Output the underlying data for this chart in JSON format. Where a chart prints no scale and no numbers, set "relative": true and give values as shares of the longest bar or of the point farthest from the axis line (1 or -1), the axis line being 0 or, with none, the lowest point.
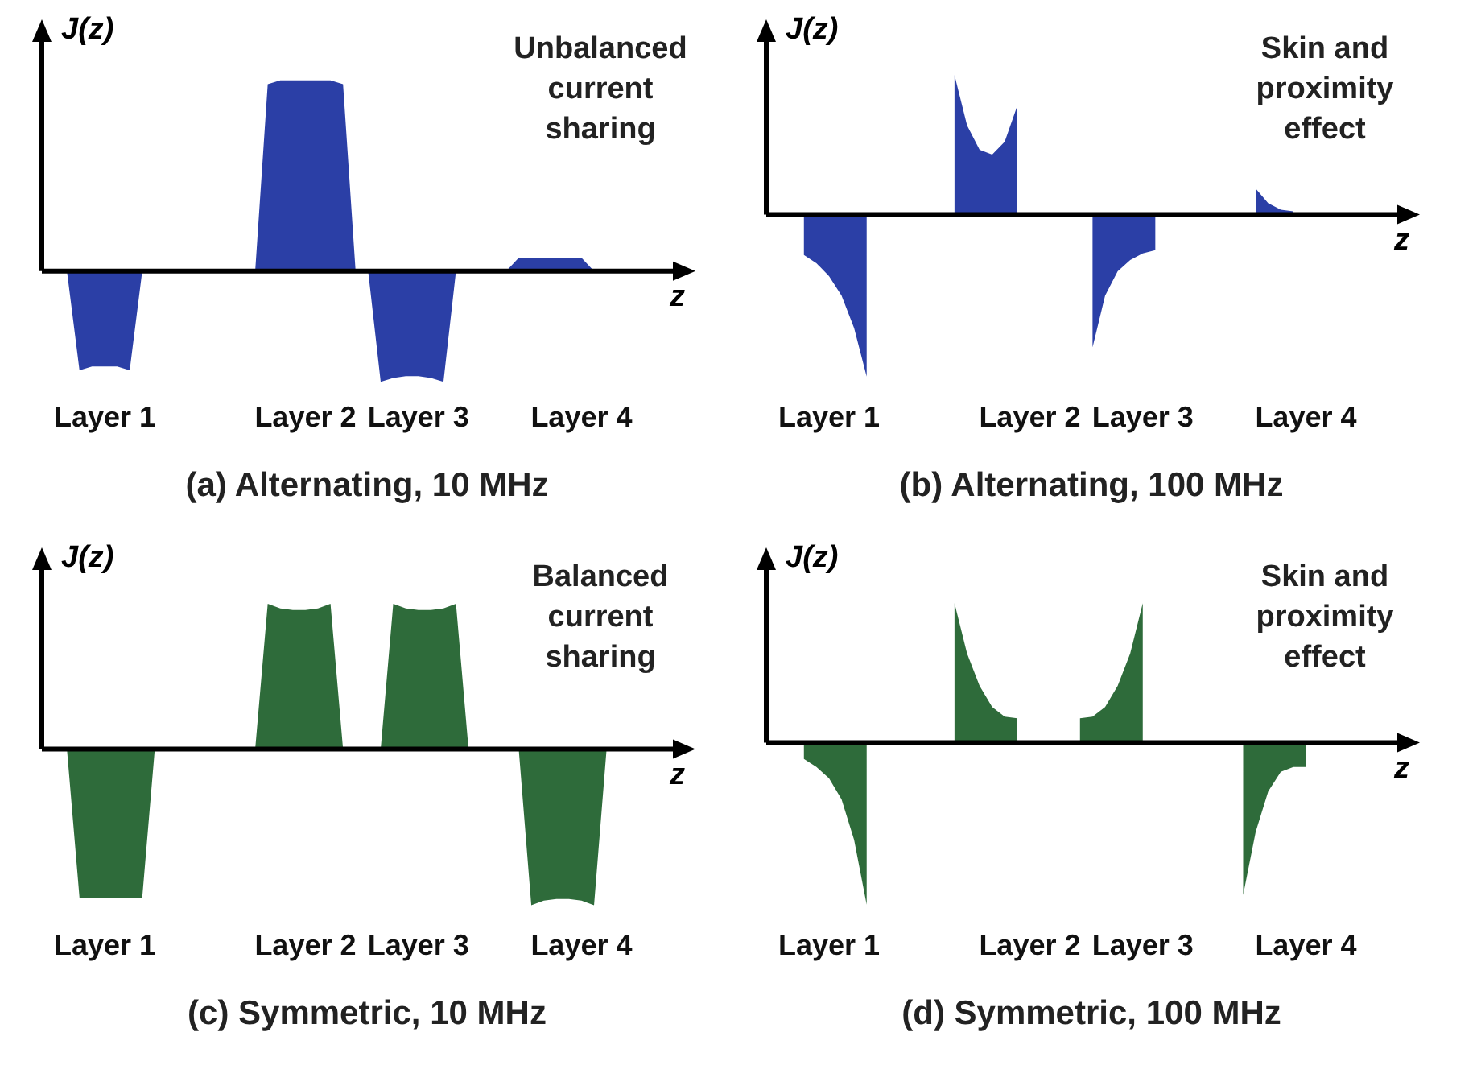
{
  "chart_data": [
    {
      "type": "area",
      "relative": true,
      "title": "(a) Alternating, 10 MHz",
      "xlabel": "z",
      "ylabel": "J(z)",
      "annotations": [
        "Unbalanced current sharing"
      ],
      "color": "#2b3fa6",
      "categories": [
        null,
        null,
        null,
        null,
        null,
        "Layer 1",
        null,
        null,
        null,
        null,
        null,
        null,
        null,
        null,
        null,
        null,
        null,
        null,
        null,
        null,
        null,
        "Layer 2",
        null,
        null,
        null,
        null,
        null,
        null,
        null,
        null,
        "Layer 3",
        null,
        null,
        null,
        null,
        null,
        null,
        null,
        null,
        null,
        null,
        null,
        null,
        "Layer 4",
        null,
        null,
        null,
        null,
        null,
        null
      ],
      "values": [
        0,
        0,
        0,
        -0.52,
        -0.5,
        -0.5,
        -0.5,
        -0.52,
        0,
        0,
        0,
        0,
        0,
        0,
        0,
        0,
        0,
        0,
        0.98,
        1,
        1,
        1,
        1,
        1,
        0.98,
        0,
        0,
        -0.58,
        -0.56,
        -0.55,
        -0.55,
        -0.56,
        -0.58,
        0,
        0,
        0,
        0,
        0,
        0.07,
        0.07,
        0.07,
        0.07,
        0.07,
        0.07,
        0,
        0,
        0,
        0,
        0,
        0
      ]
    },
    {
      "type": "area",
      "relative": true,
      "title": "(b) Alternating, 100 MHz",
      "xlabel": "z",
      "ylabel": "J(z)",
      "annotations": [
        "Skin and proximity effect"
      ],
      "color": "#2b3fa6",
      "categories": [
        null,
        null,
        null,
        null,
        null,
        "Layer 1",
        null,
        null,
        null,
        null,
        null,
        null,
        null,
        null,
        null,
        null,
        null,
        null,
        null,
        null,
        null,
        "Layer 2",
        null,
        null,
        null,
        null,
        null,
        null,
        null,
        null,
        "Layer 3",
        null,
        null,
        null,
        null,
        null,
        null,
        null,
        null,
        null,
        null,
        null,
        null,
        "Layer 4",
        null,
        null,
        null,
        null,
        null,
        null
      ],
      "values": [
        null,
        null,
        null,
        -0.25,
        -0.3,
        -0.38,
        -0.5,
        -0.7,
        -1,
        null,
        null,
        null,
        null,
        null,
        null,
        0.86,
        0.55,
        0.4,
        0.37,
        0.45,
        0.67,
        null,
        null,
        null,
        null,
        null,
        -0.82,
        -0.5,
        -0.35,
        -0.28,
        -0.24,
        -0.22,
        null,
        null,
        null,
        null,
        null,
        null,
        null,
        0.16,
        0.07,
        0.03,
        0.02,
        null,
        null,
        null,
        null,
        null,
        null,
        null
      ]
    },
    {
      "type": "area",
      "relative": true,
      "title": "(c) Symmetric, 10 MHz",
      "xlabel": "z",
      "ylabel": "J(z)",
      "annotations": [
        "Balanced current sharing"
      ],
      "color": "#2e6b3a",
      "categories": [
        null,
        null,
        null,
        null,
        null,
        "Layer 1",
        null,
        null,
        null,
        null,
        null,
        null,
        null,
        null,
        null,
        null,
        null,
        null,
        null,
        null,
        null,
        "Layer 2",
        null,
        null,
        null,
        null,
        null,
        null,
        null,
        null,
        "Layer 3",
        null,
        null,
        null,
        null,
        null,
        null,
        null,
        null,
        null,
        null,
        null,
        null,
        "Layer 4",
        null,
        null,
        null,
        null,
        null,
        null
      ],
      "values": [
        0,
        0,
        0,
        -0.95,
        -0.95,
        -0.95,
        -0.95,
        -0.95,
        -0.95,
        0,
        0,
        0,
        0,
        0,
        0,
        0,
        0,
        0,
        0.93,
        0.9,
        0.89,
        0.89,
        0.9,
        0.93,
        0,
        0,
        0,
        0,
        0.93,
        0.9,
        0.89,
        0.89,
        0.9,
        0.93,
        0,
        0,
        0,
        0,
        0,
        -1,
        -0.97,
        -0.96,
        -0.96,
        -0.97,
        -1,
        0,
        0,
        0,
        0,
        0
      ]
    },
    {
      "type": "area",
      "relative": true,
      "title": "(d) Symmetric, 100 MHz",
      "xlabel": "z",
      "ylabel": "J(z)",
      "annotations": [
        "Skin and proximity effect"
      ],
      "color": "#2e6b3a",
      "categories": [
        null,
        null,
        null,
        null,
        null,
        "Layer 1",
        null,
        null,
        null,
        null,
        null,
        null,
        null,
        null,
        null,
        null,
        null,
        null,
        null,
        null,
        null,
        "Layer 2",
        null,
        null,
        null,
        null,
        null,
        null,
        null,
        null,
        "Layer 3",
        null,
        null,
        null,
        null,
        null,
        null,
        null,
        null,
        null,
        null,
        null,
        null,
        "Layer 4",
        null,
        null,
        null,
        null,
        null,
        null
      ],
      "values": [
        null,
        null,
        null,
        -0.1,
        -0.15,
        -0.22,
        -0.35,
        -0.6,
        -1,
        null,
        null,
        null,
        null,
        null,
        null,
        0.86,
        0.55,
        0.35,
        0.22,
        0.16,
        0.15,
        null,
        null,
        null,
        null,
        0.15,
        0.16,
        0.22,
        0.35,
        0.55,
        0.86,
        null,
        null,
        null,
        null,
        null,
        null,
        null,
        -0.94,
        -0.55,
        -0.3,
        -0.18,
        -0.15,
        -0.15,
        null,
        null,
        null,
        null,
        null,
        null
      ]
    }
  ]
}
